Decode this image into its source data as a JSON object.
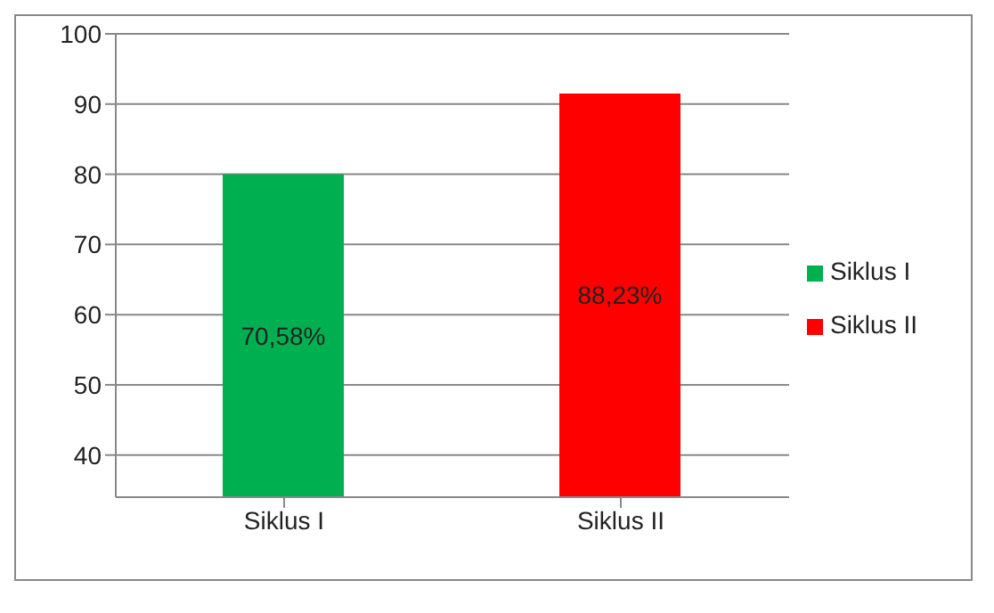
{
  "chart_data": {
    "type": "bar",
    "categories": [
      "Siklus I",
      "Siklus II"
    ],
    "series": [
      {
        "name": "Siklus I",
        "color": "#00b050",
        "values": [
          80,
          null
        ]
      },
      {
        "name": "Siklus II",
        "color": "#ff0000",
        "values": [
          null,
          91.5
        ]
      }
    ],
    "annotations": [
      "70,58%",
      "88,23%"
    ],
    "ylim": [
      34,
      100
    ],
    "yticks": [
      40,
      50,
      60,
      70,
      80,
      90,
      100
    ],
    "grid": "y",
    "legend": "right"
  }
}
